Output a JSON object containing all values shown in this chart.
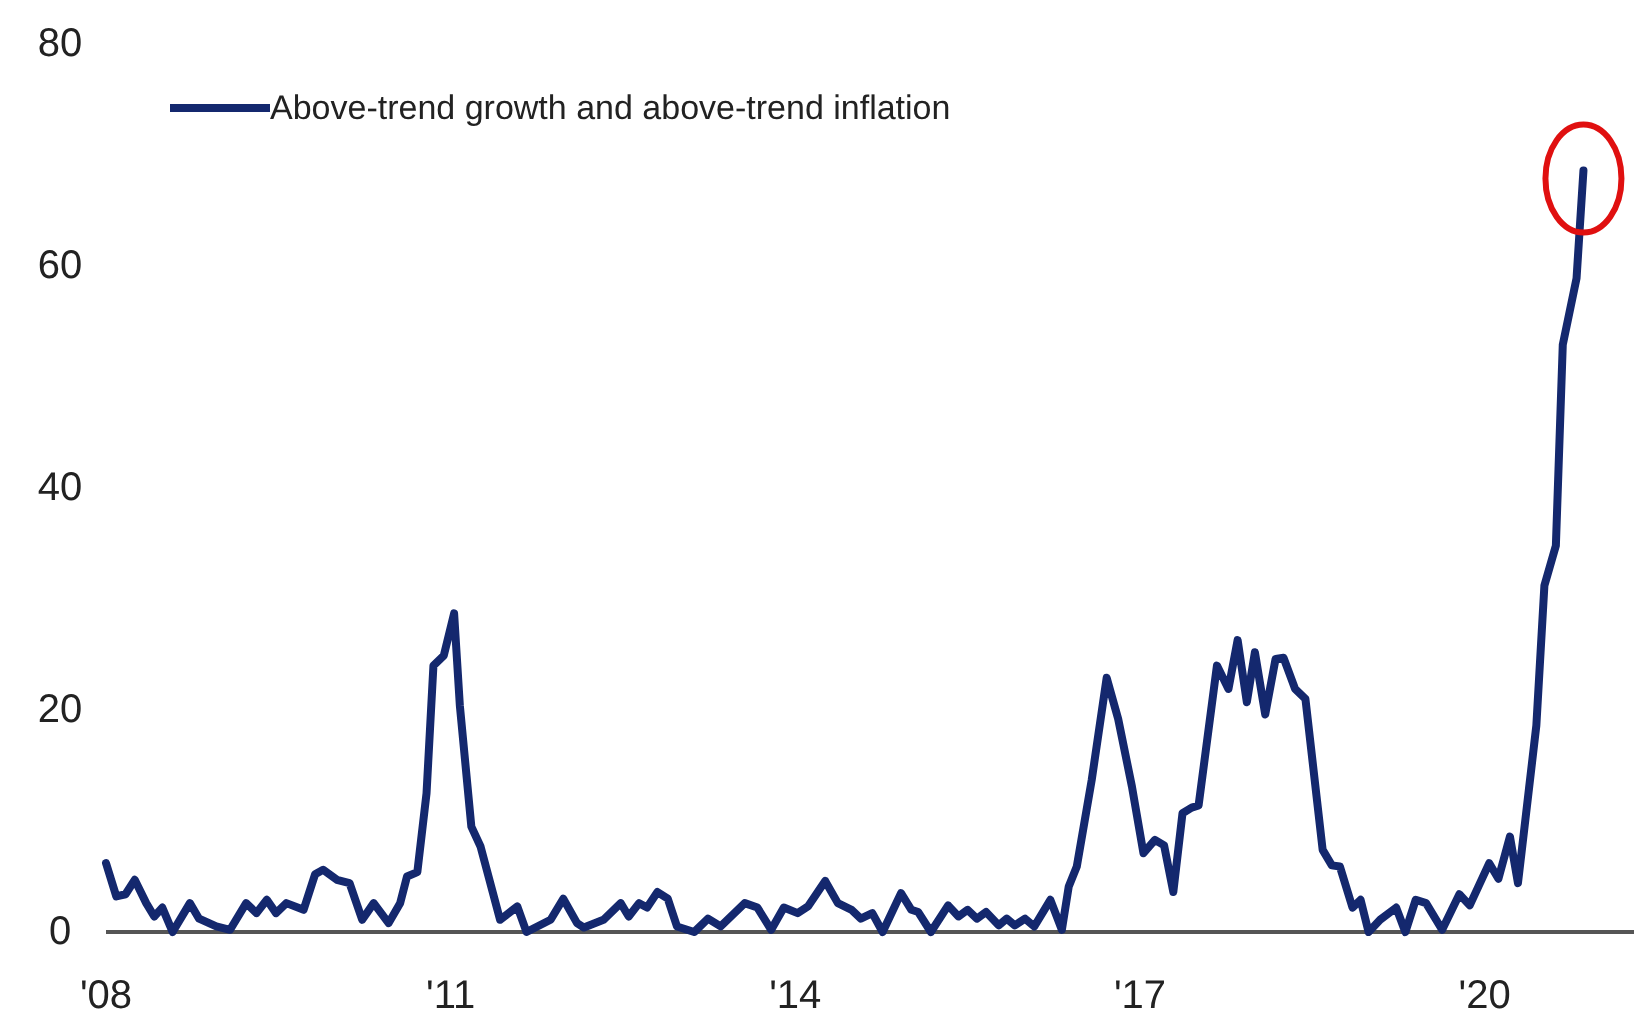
{
  "chart_data": {
    "type": "line",
    "xlim": [
      2008,
      2021.3
    ],
    "ylim": [
      0,
      80
    ],
    "xticks": [
      {
        "value": 2008,
        "label": "'08"
      },
      {
        "value": 2011,
        "label": "'11"
      },
      {
        "value": 2014,
        "label": "'14"
      },
      {
        "value": 2017,
        "label": "'17"
      },
      {
        "value": 2020,
        "label": "'20"
      }
    ],
    "yticks": [
      0,
      20,
      40,
      60,
      80
    ],
    "grid": false,
    "legend": "top left",
    "marker": "none",
    "line_style": "solid",
    "series": [
      {
        "name": "Above-trend growth and above-trend inflation",
        "color": "#14286e",
        "x": [
          2008.0,
          2008.09,
          2008.17,
          2008.25,
          2008.35,
          2008.42,
          2008.49,
          2008.58,
          2008.73,
          2008.81,
          2008.96,
          2009.08,
          2009.22,
          2009.31,
          2009.4,
          2009.48,
          2009.57,
          2009.72,
          2009.82,
          2009.89,
          2010.01,
          2010.12,
          2010.23,
          2010.33,
          2010.46,
          2010.56,
          2010.62,
          2010.71,
          2010.79,
          2010.85,
          2010.94,
          2011.03,
          2011.08,
          2011.18,
          2011.26,
          2011.43,
          2011.58,
          2011.66,
          2011.87,
          2011.98,
          2012.1,
          2012.16,
          2012.33,
          2012.48,
          2012.55,
          2012.64,
          2012.71,
          2012.8,
          2012.89,
          2012.97,
          2013.12,
          2013.24,
          2013.35,
          2013.56,
          2013.67,
          2013.79,
          2013.9,
          2014.02,
          2014.11,
          2014.26,
          2014.37,
          2014.49,
          2014.57,
          2014.67,
          2014.76,
          2014.92,
          2015.01,
          2015.07,
          2015.18,
          2015.33,
          2015.42,
          2015.5,
          2015.58,
          2015.66,
          2015.77,
          2015.84,
          2015.91,
          2016.0,
          2016.08,
          2016.22,
          2016.32,
          2016.38,
          2016.45,
          2016.58,
          2016.71,
          2016.81,
          2016.93,
          2017.03,
          2017.13,
          2017.21,
          2017.29,
          2017.37,
          2017.45,
          2017.51,
          2017.67,
          2017.77,
          2017.85,
          2017.93,
          2018.0,
          2018.09,
          2018.18,
          2018.25,
          2018.35,
          2018.44,
          2018.59,
          2018.67,
          2018.74,
          2018.85,
          2018.92,
          2018.99,
          2019.09,
          2019.23,
          2019.31,
          2019.4,
          2019.49,
          2019.63,
          2019.78,
          2019.87,
          2020.04,
          2020.12,
          2020.22,
          2020.29,
          2020.45,
          2020.52,
          2020.62,
          2020.68,
          2020.8,
          2020.86
        ],
        "values": [
          6.2,
          3.2,
          3.4,
          4.7,
          2.6,
          1.4,
          2.2,
          0,
          2.6,
          1.2,
          0.5,
          0.2,
          2.6,
          1.7,
          2.9,
          1.7,
          2.6,
          2.0,
          5.2,
          5.6,
          4.7,
          4.4,
          1.1,
          2.6,
          0.8,
          2.6,
          5.0,
          5.4,
          12.5,
          24.0,
          24.9,
          28.7,
          20.4,
          9.5,
          7.7,
          1.1,
          2.3,
          0,
          1.1,
          3.0,
          0.8,
          0.4,
          1.1,
          2.6,
          1.4,
          2.6,
          2.2,
          3.6,
          3.0,
          0.5,
          0,
          1.2,
          0.5,
          2.6,
          2.2,
          0.2,
          2.2,
          1.7,
          2.3,
          4.6,
          2.6,
          2.0,
          1.2,
          1.7,
          0,
          3.5,
          2.0,
          1.8,
          0,
          2.4,
          1.4,
          2.0,
          1.2,
          1.8,
          0.6,
          1.2,
          0.6,
          1.2,
          0.5,
          2.9,
          0.2,
          4.1,
          5.9,
          13.7,
          22.9,
          19.2,
          13.1,
          7.1,
          8.3,
          7.8,
          3.6,
          10.7,
          11.2,
          11.4,
          24.0,
          21.9,
          26.3,
          20.7,
          25.2,
          19.6,
          24.6,
          24.7,
          21.9,
          21.0,
          7.4,
          6.0,
          5.9,
          2.2,
          2.9,
          0,
          1.1,
          2.2,
          0,
          2.9,
          2.6,
          0.2,
          3.4,
          2.4,
          6.2,
          4.8,
          8.6,
          4.4,
          18.6,
          31.2,
          34.8,
          52.9,
          58.9,
          68.6
        ]
      }
    ]
  }
}
